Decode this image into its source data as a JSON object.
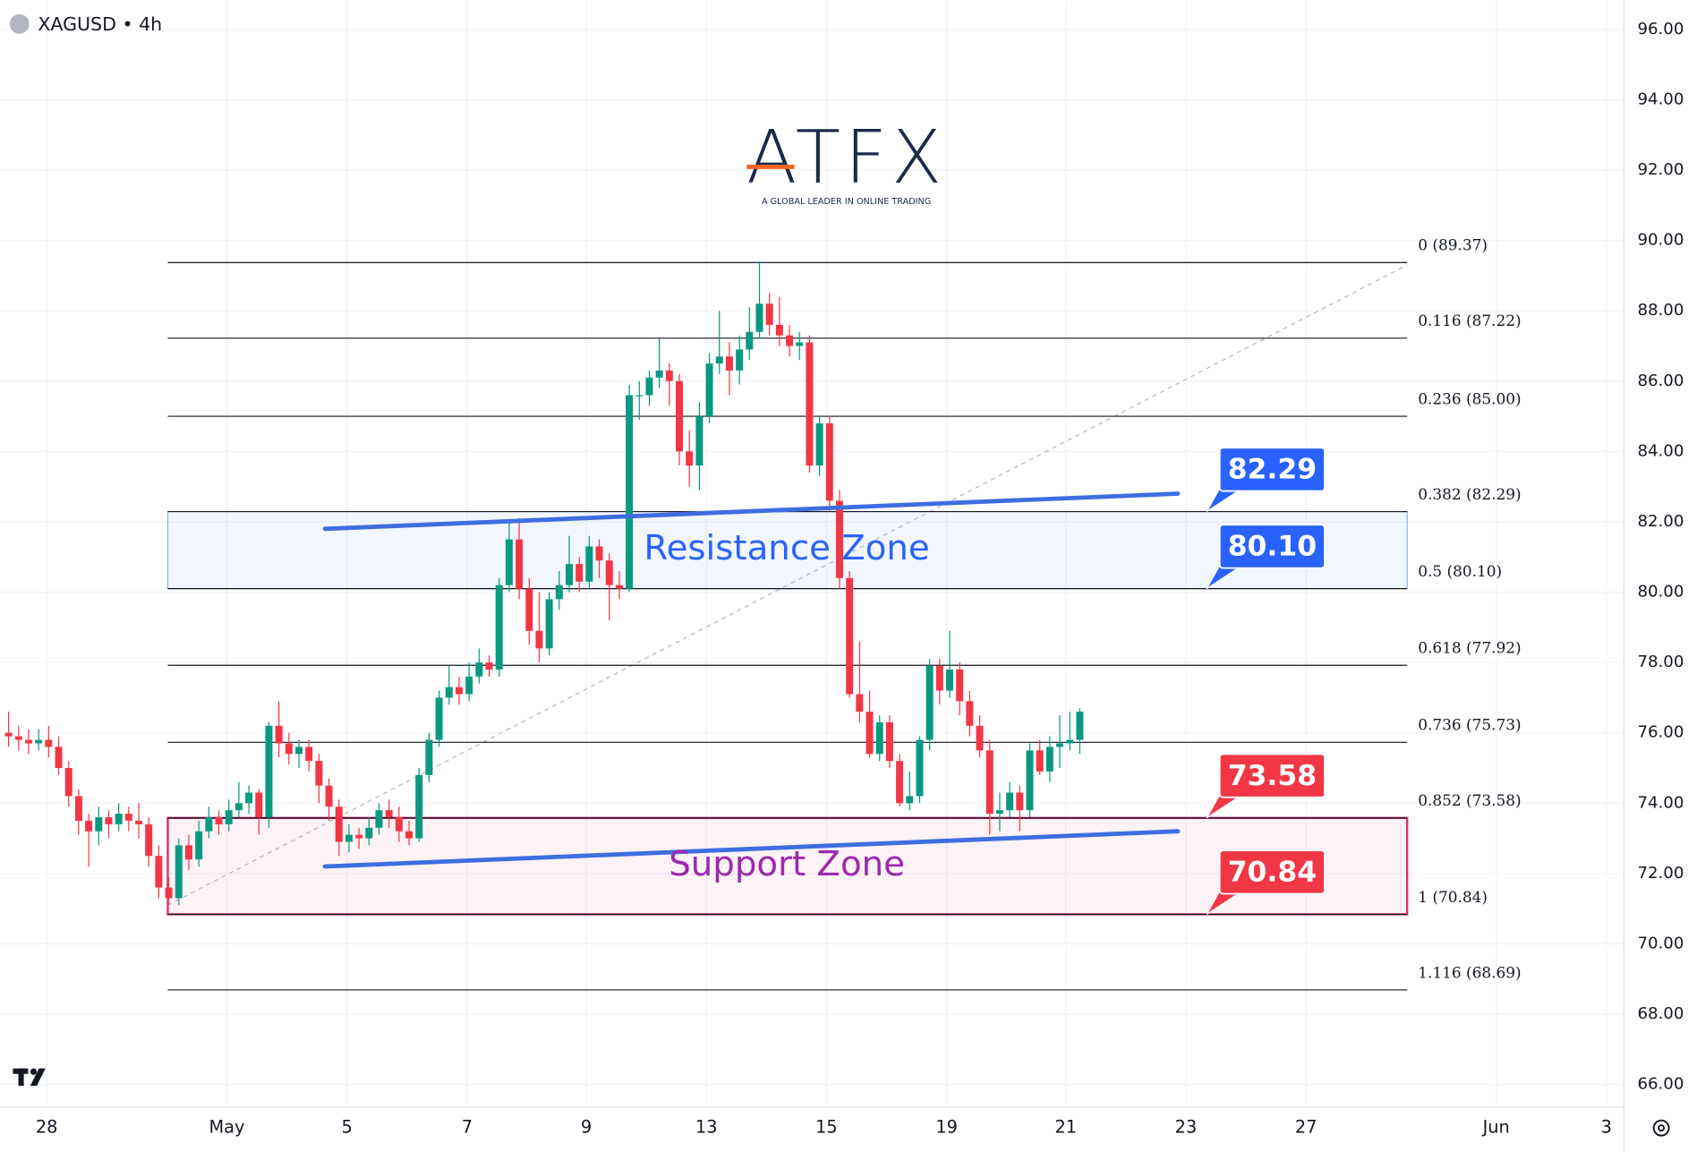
{
  "chart_data": {
    "type": "candlestick",
    "symbol": "XAGUSD • 4h",
    "watermark": {
      "name": "ATFX",
      "tagline": "A GLOBAL LEADER IN ONLINE TRADING"
    },
    "colors": {
      "up": "#089981",
      "down": "#f23645"
    },
    "ohlc": [
      [
        76.0,
        76.6,
        75.6,
        75.9
      ],
      [
        75.9,
        76.2,
        75.5,
        75.8
      ],
      [
        75.8,
        76.1,
        75.4,
        75.7
      ],
      [
        75.7,
        76.1,
        75.5,
        75.8
      ],
      [
        75.8,
        76.2,
        75.3,
        75.6
      ],
      [
        75.6,
        75.9,
        74.8,
        75.0
      ],
      [
        75.0,
        75.2,
        73.9,
        74.2
      ],
      [
        74.2,
        74.4,
        73.1,
        73.5
      ],
      [
        73.5,
        73.7,
        72.2,
        73.2
      ],
      [
        73.2,
        73.9,
        72.8,
        73.6
      ],
      [
        73.6,
        73.8,
        73.0,
        73.4
      ],
      [
        73.4,
        74.0,
        73.2,
        73.7
      ],
      [
        73.7,
        73.9,
        73.2,
        73.5
      ],
      [
        73.5,
        74.0,
        73.0,
        73.4
      ],
      [
        73.4,
        73.6,
        72.2,
        72.5
      ],
      [
        72.5,
        72.8,
        71.3,
        71.6
      ],
      [
        71.6,
        71.9,
        71.1,
        71.3
      ],
      [
        71.3,
        73.0,
        71.1,
        72.8
      ],
      [
        72.8,
        73.1,
        72.1,
        72.4
      ],
      [
        72.4,
        73.5,
        72.2,
        73.2
      ],
      [
        73.2,
        73.9,
        73.0,
        73.6
      ],
      [
        73.6,
        73.8,
        73.1,
        73.4
      ],
      [
        73.4,
        74.1,
        73.2,
        73.8
      ],
      [
        73.8,
        74.6,
        73.6,
        74.0
      ],
      [
        74.0,
        74.5,
        73.7,
        74.3
      ],
      [
        74.3,
        74.4,
        73.1,
        73.6
      ],
      [
        73.6,
        76.3,
        73.3,
        76.2
      ],
      [
        76.2,
        76.9,
        75.3,
        75.7
      ],
      [
        75.7,
        76.0,
        75.1,
        75.4
      ],
      [
        75.4,
        75.8,
        75.0,
        75.6
      ],
      [
        75.6,
        75.8,
        74.9,
        75.2
      ],
      [
        75.2,
        75.4,
        74.0,
        74.5
      ],
      [
        74.5,
        74.7,
        73.5,
        73.9
      ],
      [
        73.9,
        74.1,
        72.5,
        72.9
      ],
      [
        72.9,
        73.4,
        72.6,
        73.1
      ],
      [
        73.1,
        73.3,
        72.7,
        73.0
      ],
      [
        73.0,
        73.6,
        72.8,
        73.3
      ],
      [
        73.3,
        74.0,
        73.1,
        73.8
      ],
      [
        73.8,
        74.1,
        73.3,
        73.6
      ],
      [
        73.6,
        73.9,
        72.9,
        73.2
      ],
      [
        73.2,
        73.5,
        72.8,
        73.0
      ],
      [
        73.0,
        75.0,
        72.9,
        74.8
      ],
      [
        74.8,
        76.0,
        74.6,
        75.8
      ],
      [
        75.8,
        77.2,
        75.6,
        77.0
      ],
      [
        77.0,
        77.9,
        76.8,
        77.3
      ],
      [
        77.3,
        77.6,
        76.8,
        77.1
      ],
      [
        77.1,
        78.0,
        76.9,
        77.6
      ],
      [
        77.6,
        78.4,
        77.4,
        78.0
      ],
      [
        78.0,
        78.2,
        77.6,
        77.8
      ],
      [
        77.8,
        80.4,
        77.6,
        80.2
      ],
      [
        80.2,
        82.0,
        80.0,
        81.5
      ],
      [
        81.5,
        82.1,
        79.8,
        80.1
      ],
      [
        80.1,
        80.4,
        78.5,
        78.9
      ],
      [
        78.9,
        80.0,
        78.0,
        78.4
      ],
      [
        78.4,
        80.0,
        78.2,
        79.8
      ],
      [
        79.8,
        80.6,
        79.5,
        80.2
      ],
      [
        80.2,
        81.6,
        80.0,
        80.8
      ],
      [
        80.8,
        81.0,
        80.0,
        80.3
      ],
      [
        80.3,
        81.6,
        80.1,
        81.3
      ],
      [
        81.3,
        81.5,
        80.4,
        80.9
      ],
      [
        80.9,
        81.1,
        79.2,
        80.2
      ],
      [
        80.2,
        80.6,
        79.8,
        80.1
      ],
      [
        80.1,
        85.9,
        80.0,
        85.6
      ],
      [
        85.6,
        86.0,
        84.9,
        85.6
      ],
      [
        85.6,
        86.3,
        85.3,
        86.1
      ],
      [
        86.1,
        87.2,
        85.8,
        86.3
      ],
      [
        86.3,
        86.5,
        85.3,
        86.0
      ],
      [
        86.0,
        86.2,
        83.6,
        84.0
      ],
      [
        84.0,
        84.6,
        83.0,
        83.6
      ],
      [
        83.6,
        85.4,
        82.9,
        85.0
      ],
      [
        85.0,
        86.8,
        84.8,
        86.5
      ],
      [
        86.5,
        88.0,
        86.2,
        86.7
      ],
      [
        86.7,
        87.1,
        85.6,
        86.3
      ],
      [
        86.3,
        87.3,
        85.9,
        86.9
      ],
      [
        86.9,
        88.1,
        86.6,
        87.4
      ],
      [
        87.4,
        89.4,
        87.2,
        88.2
      ],
      [
        88.2,
        88.5,
        87.3,
        87.6
      ],
      [
        87.6,
        88.4,
        87.0,
        87.3
      ],
      [
        87.3,
        87.6,
        86.7,
        87.0
      ],
      [
        87.0,
        87.4,
        86.6,
        87.1
      ],
      [
        87.1,
        87.3,
        83.4,
        83.6
      ],
      [
        83.6,
        85.0,
        83.3,
        84.8
      ],
      [
        84.8,
        85.0,
        82.3,
        82.6
      ],
      [
        82.6,
        82.9,
        80.1,
        80.4
      ],
      [
        80.4,
        80.6,
        77.0,
        77.1
      ],
      [
        77.1,
        78.6,
        76.3,
        76.6
      ],
      [
        76.6,
        77.2,
        75.3,
        75.4
      ],
      [
        75.4,
        76.5,
        75.2,
        76.3
      ],
      [
        76.3,
        76.5,
        75.0,
        75.2
      ],
      [
        75.2,
        75.4,
        73.9,
        74.0
      ],
      [
        74.0,
        74.9,
        73.8,
        74.2
      ],
      [
        74.2,
        75.9,
        74.0,
        75.8
      ],
      [
        75.8,
        78.1,
        75.5,
        77.9
      ],
      [
        77.9,
        78.1,
        76.8,
        77.2
      ],
      [
        77.2,
        78.9,
        77.0,
        77.8
      ],
      [
        77.8,
        78.0,
        76.5,
        76.9
      ],
      [
        76.9,
        77.2,
        75.9,
        76.2
      ],
      [
        76.2,
        76.5,
        75.3,
        75.5
      ],
      [
        75.5,
        75.8,
        73.1,
        73.7
      ],
      [
        73.7,
        74.3,
        73.2,
        73.8
      ],
      [
        73.8,
        74.6,
        73.6,
        74.3
      ],
      [
        74.3,
        74.5,
        73.2,
        73.8
      ],
      [
        73.8,
        75.7,
        73.6,
        75.5
      ],
      [
        75.5,
        75.8,
        74.8,
        74.9
      ],
      [
        74.9,
        75.9,
        74.6,
        75.6
      ],
      [
        75.6,
        76.5,
        75.0,
        75.7
      ],
      [
        75.7,
        76.6,
        75.5,
        75.8
      ],
      [
        75.8,
        76.7,
        75.4,
        76.6
      ]
    ],
    "xlim": [
      -0.86,
      161.3
    ],
    "xticks": [
      {
        "value": 3.8,
        "label": "28"
      },
      {
        "value": 21.8,
        "label": "May"
      },
      {
        "value": 33.8,
        "label": "5"
      },
      {
        "value": 45.8,
        "label": "7"
      },
      {
        "value": 57.7,
        "label": "9"
      },
      {
        "value": 69.7,
        "label": "13"
      },
      {
        "value": 81.7,
        "label": "15"
      },
      {
        "value": 93.7,
        "label": "19"
      },
      {
        "value": 105.6,
        "label": "21"
      },
      {
        "value": 117.6,
        "label": "23"
      },
      {
        "value": 129.6,
        "label": "27"
      },
      {
        "value": 148.6,
        "label": "Jun"
      },
      {
        "value": 159.6,
        "label": "3"
      }
    ],
    "ylim": [
      65.38,
      96.83
    ],
    "yticks": [
      {
        "value": 66,
        "label": "66.00"
      },
      {
        "value": 68,
        "label": "68.00"
      },
      {
        "value": 70,
        "label": "70.00"
      },
      {
        "value": 72,
        "label": "72.00"
      },
      {
        "value": 74,
        "label": "74.00"
      },
      {
        "value": 76,
        "label": "76.00"
      },
      {
        "value": 78,
        "label": "78.00"
      },
      {
        "value": 80,
        "label": "80.00"
      },
      {
        "value": 82,
        "label": "82.00"
      },
      {
        "value": 84,
        "label": "84.00"
      },
      {
        "value": 86,
        "label": "86.00"
      },
      {
        "value": 88,
        "label": "88.00"
      },
      {
        "value": 90,
        "label": "90.00"
      },
      {
        "value": 92,
        "label": "92.00"
      },
      {
        "value": 94,
        "label": "94.00"
      },
      {
        "value": 96,
        "label": "96.00"
      }
    ],
    "grid": true,
    "fib_xrange": [
      15.9,
      139.7
    ],
    "fib_levels": [
      {
        "value": 89.37,
        "label": "0 (89.37)"
      },
      {
        "value": 87.22,
        "label": "0.116 (87.22)"
      },
      {
        "value": 85.0,
        "label": "0.236 (85.00)"
      },
      {
        "value": 82.29,
        "label": "0.382 (82.29)"
      },
      {
        "value": 80.1,
        "label": "0.5 (80.10)"
      },
      {
        "value": 77.92,
        "label": "0.618 (77.92)"
      },
      {
        "value": 75.73,
        "label": "0.736 (75.73)"
      },
      {
        "value": 73.58,
        "label": "0.852 (73.58)"
      },
      {
        "value": 70.84,
        "label": "1 (70.84)"
      },
      {
        "value": 68.69,
        "label": "1.116 (68.69)"
      }
    ],
    "fib_trend": {
      "x": [
        15.9,
        139.7
      ],
      "y": [
        71.1,
        89.3
      ]
    },
    "zones": [
      {
        "name": "Resistance Zone",
        "range": [
          80.1,
          82.29
        ],
        "color": "#2962ff",
        "text_color": "#2962ff"
      },
      {
        "name": "Support Zone",
        "range": [
          70.84,
          73.58
        ],
        "color": "#d81b60",
        "text_color": "#9c27b0"
      }
    ],
    "trend_lines": [
      {
        "x": [
          31.6,
          116.8
        ],
        "y": [
          81.8,
          82.8
        ],
        "color": "#3d6ee0"
      },
      {
        "x": [
          31.6,
          116.8
        ],
        "y": [
          72.2,
          73.2
        ],
        "color": "#3d6ee0"
      }
    ],
    "callouts": [
      {
        "value": 82.29,
        "label": "82.29",
        "color": "#2962ff"
      },
      {
        "value": 80.1,
        "label": "80.10",
        "color": "#2962ff"
      },
      {
        "value": 73.58,
        "label": "73.58",
        "color": "#f23645"
      },
      {
        "value": 70.84,
        "label": "70.84",
        "color": "#f23645"
      }
    ]
  }
}
